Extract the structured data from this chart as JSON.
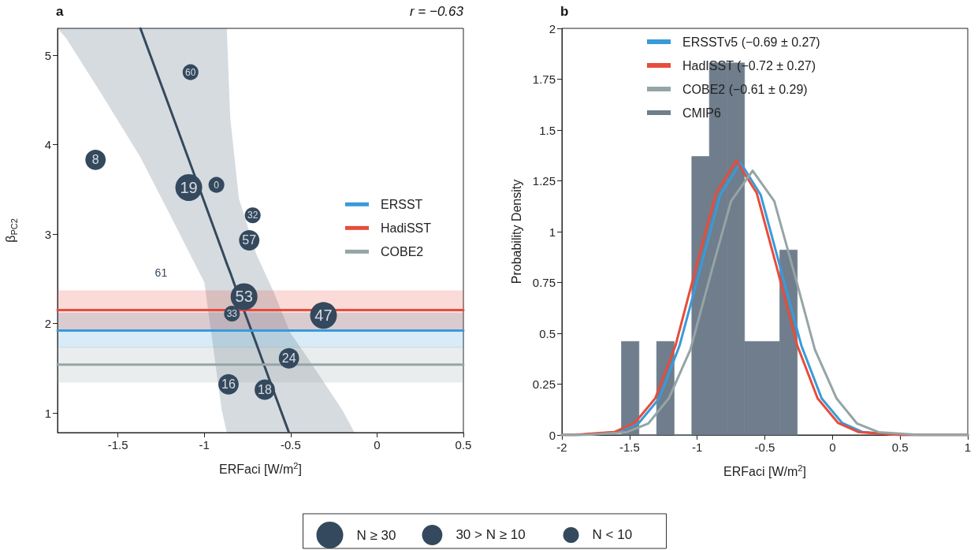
{
  "chart_data": [
    {
      "type": "bubble",
      "title": "a",
      "xlabel": "ERFaci [W/m$^{2}$]",
      "ylabel": "β$_{PC2}$",
      "xlim": [
        -1.85,
        0.5
      ],
      "ylim": [
        0.78,
        5.3
      ],
      "xticks": [
        -1.5,
        -1,
        -0.5,
        0,
        0.5
      ],
      "yticks": [
        1,
        2,
        3,
        4,
        5
      ],
      "grid": false,
      "legend": "right",
      "annotations": [
        "r = −0.63",
        {
          "text": "19",
          "x": -1.09,
          "y": 3.52
        },
        {
          "text": "53",
          "x": -0.77,
          "y": 2.3
        },
        {
          "text": "47",
          "x": -0.31,
          "y": 2.09
        },
        {
          "text": "8",
          "x": -1.63,
          "y": 3.83
        },
        {
          "text": "57",
          "x": -0.74,
          "y": 2.93
        },
        {
          "text": "24",
          "x": -0.51,
          "y": 1.61
        },
        {
          "text": "16",
          "x": -0.86,
          "y": 1.32
        },
        {
          "text": "18",
          "x": -0.65,
          "y": 1.26
        },
        {
          "text": "60",
          "x": -1.08,
          "y": 4.81
        },
        {
          "text": "0",
          "x": -0.93,
          "y": 3.55
        },
        {
          "text": "32",
          "x": -0.72,
          "y": 3.21
        },
        {
          "text": "33",
          "x": -0.84,
          "y": 2.11
        },
        "61"
      ],
      "series": [
        {
          "name": "N ≥ 30",
          "color": "#34495e",
          "x": [
            -1.09,
            -0.77,
            -0.31
          ],
          "values": [
            3.52,
            2.3,
            2.09
          ],
          "sizes": [
            1,
            1,
            1
          ]
        },
        {
          "name": "30 > N ≥ 10",
          "color": "#34495e",
          "x": [
            -1.63,
            -0.74,
            -0.51,
            -0.86,
            -0.65
          ],
          "values": [
            3.83,
            2.93,
            1.61,
            1.32,
            1.26
          ],
          "sizes": [
            0.58,
            0.58,
            0.58,
            0.58,
            0.58
          ]
        },
        {
          "name": "N < 10",
          "color": "#34495e",
          "x": [
            -1.08,
            -0.93,
            -0.72,
            -0.84
          ],
          "values": [
            4.81,
            3.55,
            3.21,
            2.11
          ],
          "sizes": [
            0.35,
            0.35,
            0.35,
            0.35
          ]
        },
        {
          "type": "line",
          "color": "#34495e",
          "x": [
            -1.85,
            -1.8,
            -1.6,
            -1.37,
            -1.2,
            -1.0,
            -0.9,
            -0.87,
            -0.85,
            -0.8,
            -0.7,
            -0.6,
            -0.51,
            -0.5,
            -0.4,
            -0.3,
            -0.2,
            -0.13
          ],
          "values": [
            null,
            null,
            null,
            5.3,
            4.41,
            3.36,
            2.83,
            2.67,
            2.57,
            2.3,
            1.78,
            1.25,
            0.78,
            null,
            null,
            null,
            null,
            null
          ],
          "lower": [
            5.3,
            5.19,
            4.58,
            3.86,
            3.22,
            2.46,
            1.04,
            0.78,
            0.78,
            0.78,
            0.78,
            0.78,
            0.78,
            0.78,
            0.78,
            0.78,
            0.78,
            0.78
          ],
          "upper": [
            5.3,
            5.3,
            5.3,
            5.3,
            5.3,
            5.3,
            5.3,
            5.3,
            4.3,
            3.4,
            2.78,
            2.36,
            1.93,
            1.89,
            1.61,
            1.32,
            1.03,
            0.78
          ]
        },
        {
          "type": "line",
          "name": "ERSST",
          "color": "#3a9ad9",
          "x": [
            -1.85,
            0.5
          ],
          "values": [
            1.92,
            1.92
          ],
          "lower": [
            1.73,
            1.73
          ],
          "upper": [
            2.12,
            2.12
          ]
        },
        {
          "type": "line",
          "name": "HadiSST",
          "color": "#e74c3c",
          "x": [
            -1.85,
            0.5
          ],
          "values": [
            2.15,
            2.15
          ],
          "lower": [
            1.93,
            1.93
          ],
          "upper": [
            2.37,
            2.37
          ]
        },
        {
          "type": "line",
          "name": "COBE2",
          "color": "#95a5a6",
          "x": [
            -1.85,
            0.5
          ],
          "values": [
            1.54,
            1.54
          ],
          "lower": [
            1.34,
            1.34
          ],
          "upper": [
            1.74,
            1.74
          ]
        }
      ]
    },
    {
      "type": "histogram",
      "title": "b",
      "xlabel": "ERFaci [W/m$^{2}$]",
      "ylabel": "Probability Density",
      "xlim": [
        -2,
        1
      ],
      "ylim": [
        0,
        2
      ],
      "xticks": [
        -2,
        -1.5,
        -1,
        -0.5,
        0,
        0.5,
        1
      ],
      "yticks": [
        0,
        0.25,
        0.5,
        0.75,
        1,
        1.25,
        1.5,
        1.75,
        2
      ],
      "grid": false,
      "legend": "top",
      "series": [
        {
          "type": "line",
          "name": "ERSSTv5 (−0.69 ± 0.27)",
          "color": "#3a9ad9",
          "x": [
            -2,
            -1.88,
            -1.58,
            -1.43,
            -1.28,
            -1.13,
            -0.98,
            -0.83,
            -0.68,
            -0.53,
            -0.38,
            -0.23,
            -0.08,
            0.07,
            0.22,
            0.52,
            1
          ],
          "values": [
            0,
            0,
            0.015,
            0.06,
            0.18,
            0.44,
            0.81,
            1.18,
            1.34,
            1.18,
            0.81,
            0.44,
            0.18,
            0.06,
            0.015,
            0,
            0
          ]
        },
        {
          "type": "line",
          "name": "HadISST (−0.72 ± 0.27)",
          "color": "#e74c3c",
          "x": [
            -2,
            -1.91,
            -1.61,
            -1.46,
            -1.31,
            -1.16,
            -1.01,
            -0.86,
            -0.71,
            -0.56,
            -0.41,
            -0.26,
            -0.11,
            0.04,
            0.19,
            0.49,
            1
          ],
          "values": [
            0,
            0,
            0.015,
            0.06,
            0.18,
            0.44,
            0.82,
            1.19,
            1.35,
            1.19,
            0.82,
            0.44,
            0.18,
            0.06,
            0.015,
            0,
            0
          ]
        },
        {
          "type": "line",
          "name": "COBE2 (−0.61 ± 0.29)",
          "color": "#95a5a6",
          "x": [
            -2,
            -1.83,
            -1.52,
            -1.36,
            -1.21,
            -1.05,
            -0.9,
            -0.75,
            -0.59,
            -0.43,
            -0.28,
            -0.13,
            0.03,
            0.18,
            0.34,
            0.65,
            1
          ],
          "values": [
            0,
            0,
            0.014,
            0.057,
            0.18,
            0.42,
            0.79,
            1.15,
            1.3,
            1.15,
            0.79,
            0.42,
            0.18,
            0.057,
            0.014,
            0,
            0
          ]
        },
        {
          "type": "histogram",
          "name": "CMIP6",
          "color": "#6f7d8c",
          "bins": [
            -1.56,
            -1.43,
            -1.3,
            -1.17,
            -1.04,
            -0.91,
            -0.78,
            -0.65,
            -0.52,
            -0.39,
            -0.26
          ],
          "values": [
            0.46,
            0,
            0.46,
            0,
            1.37,
            1.83,
            1.83,
            0.46,
            0.46,
            0.91
          ]
        }
      ]
    }
  ]
}
